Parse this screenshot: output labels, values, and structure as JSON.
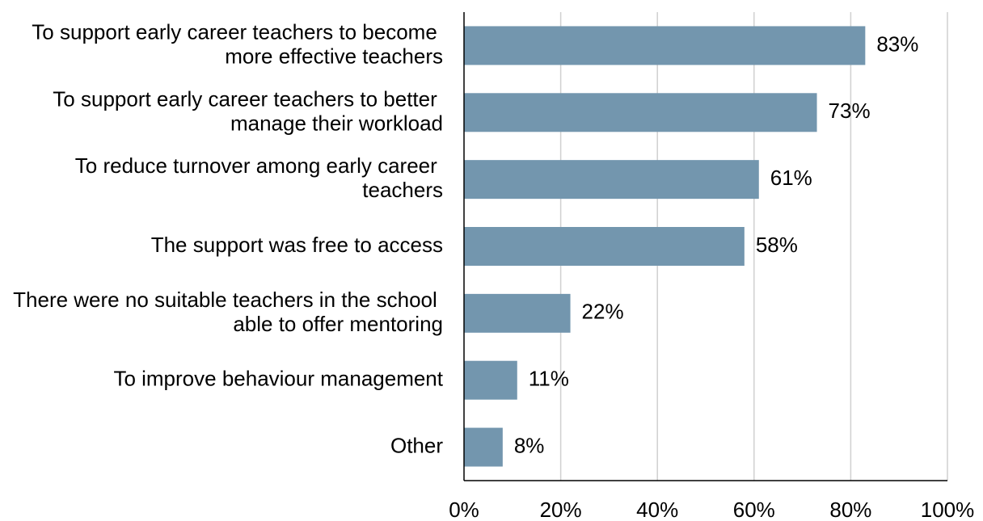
{
  "chart_data": {
    "type": "bar",
    "orientation": "horizontal",
    "categories": [
      "To support early career teachers to become more effective teachers",
      "To support early career teachers to better manage their workload",
      "To reduce turnover among early career teachers",
      "The support was free to access",
      "There were no suitable teachers in the school able to offer mentoring",
      "To improve behaviour management",
      "Other"
    ],
    "values": [
      83,
      73,
      61,
      58,
      22,
      11,
      8
    ],
    "value_labels": [
      "83%",
      "73%",
      "61%",
      "58%",
      "22%",
      "11%",
      "8%"
    ],
    "color": "#7396ae",
    "xlim": [
      0,
      100
    ],
    "xticks": [
      {
        "value": 0,
        "label": "0%"
      },
      {
        "value": 20,
        "label": "20%"
      },
      {
        "value": 40,
        "label": "40%"
      },
      {
        "value": 60,
        "label": "60%"
      },
      {
        "value": 80,
        "label": "80%"
      },
      {
        "value": 100,
        "label": "100%"
      }
    ],
    "grid": true
  }
}
